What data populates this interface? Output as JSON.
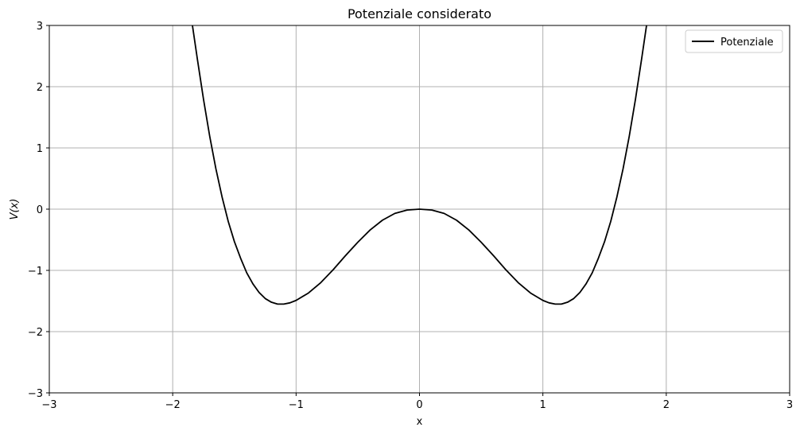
{
  "chart_data": {
    "type": "line",
    "title": "Potenziale considerato",
    "xlabel": "x",
    "ylabel": "V(x)",
    "xlim": [
      -3,
      3
    ],
    "ylim": [
      -3,
      3
    ],
    "grid": true,
    "legend_position": "top-right",
    "x_ticks": [
      -3,
      -2,
      -1,
      0,
      1,
      2,
      3
    ],
    "x_tick_labels": [
      "−3",
      "−2",
      "−1",
      "0",
      "1",
      "2",
      "3"
    ],
    "y_ticks": [
      -3,
      -2,
      -1,
      0,
      1,
      2,
      3
    ],
    "y_tick_labels": [
      "−3",
      "−2",
      "−1",
      "0",
      "1",
      "2",
      "3"
    ],
    "series": [
      {
        "name": "Potenziale",
        "color": "#000000",
        "x": [
          -1.84,
          -1.8,
          -1.75,
          -1.7,
          -1.65,
          -1.6,
          -1.55,
          -1.5,
          -1.45,
          -1.4,
          -1.35,
          -1.3,
          -1.25,
          -1.2,
          -1.15,
          -1.1,
          -1.05,
          -1.0,
          -0.9,
          -0.8,
          -0.7,
          -0.6,
          -0.5,
          -0.4,
          -0.3,
          -0.2,
          -0.1,
          0.0,
          0.1,
          0.2,
          0.3,
          0.4,
          0.5,
          0.6,
          0.7,
          0.8,
          0.9,
          1.0,
          1.05,
          1.1,
          1.15,
          1.2,
          1.25,
          1.3,
          1.35,
          1.4,
          1.45,
          1.5,
          1.55,
          1.6,
          1.65,
          1.7,
          1.75,
          1.8,
          1.84
        ],
        "y": [
          3.0,
          2.45,
          1.79,
          1.19,
          0.66,
          0.2,
          -0.2,
          -0.53,
          -0.8,
          -1.04,
          -1.22,
          -1.36,
          -1.46,
          -1.52,
          -1.55,
          -1.55,
          -1.53,
          -1.49,
          -1.37,
          -1.2,
          -0.99,
          -0.76,
          -0.54,
          -0.34,
          -0.18,
          -0.07,
          -0.015,
          0.0,
          -0.015,
          -0.07,
          -0.18,
          -0.34,
          -0.54,
          -0.76,
          -0.99,
          -1.2,
          -1.37,
          -1.49,
          -1.53,
          -1.55,
          -1.55,
          -1.52,
          -1.46,
          -1.36,
          -1.22,
          -1.04,
          -0.8,
          -0.53,
          -0.2,
          0.2,
          0.66,
          1.19,
          1.79,
          2.45,
          3.0
        ]
      }
    ]
  }
}
